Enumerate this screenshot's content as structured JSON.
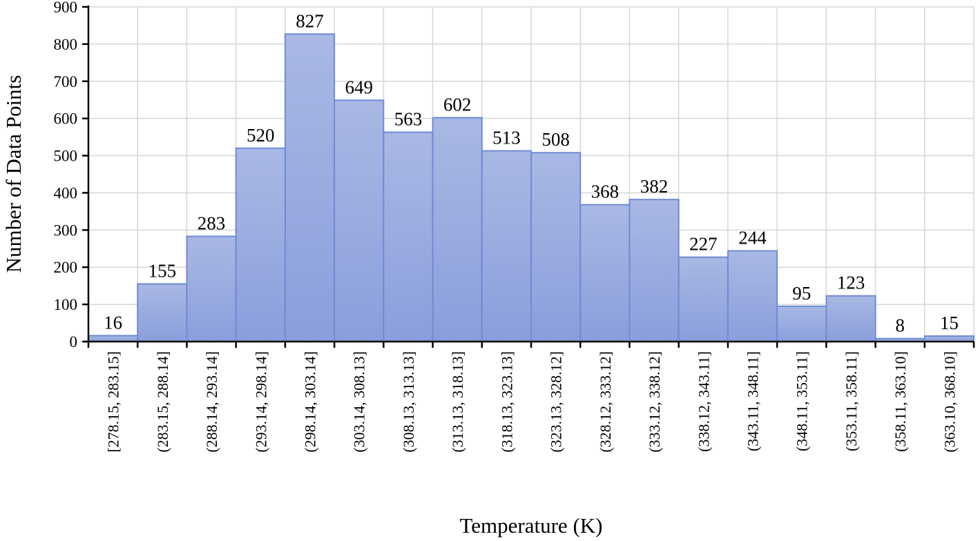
{
  "chart_data": {
    "type": "bar",
    "xlabel": "Temperature (K)",
    "ylabel": "Number of Data Points",
    "ylim": [
      0,
      900
    ],
    "yticks": [
      0,
      100,
      200,
      300,
      400,
      500,
      600,
      700,
      800,
      900
    ],
    "grid": true,
    "legend": "none",
    "colors": {
      "bar_fill_top": "#a9b8e3",
      "bar_fill_bottom": "#8a9edc",
      "bar_edge": "#6f8bd4",
      "grid": "#d6d6d6"
    },
    "categories": [
      "[278.15, 283.15]",
      "(283.15, 288.14]",
      "(288.14, 293.14]",
      "(293.14, 298.14]",
      "(298.14, 303.14]",
      "(303.14, 308.13]",
      "(308.13, 313.13]",
      "(313.13, 318.13]",
      "(318.13, 323.13]",
      "(323.13, 328.12]",
      "(328.12, 333.12]",
      "(333.12, 338.12]",
      "(338.12, 343.11]",
      "(343.11, 348.11]",
      "(348.11, 353.11]",
      "(353.11, 358.11]",
      "(358.11, 363.10]",
      "(363.10, 368.10]"
    ],
    "values": [
      16,
      155,
      283,
      520,
      827,
      649,
      563,
      602,
      513,
      508,
      368,
      382,
      227,
      244,
      95,
      123,
      8,
      15
    ]
  }
}
